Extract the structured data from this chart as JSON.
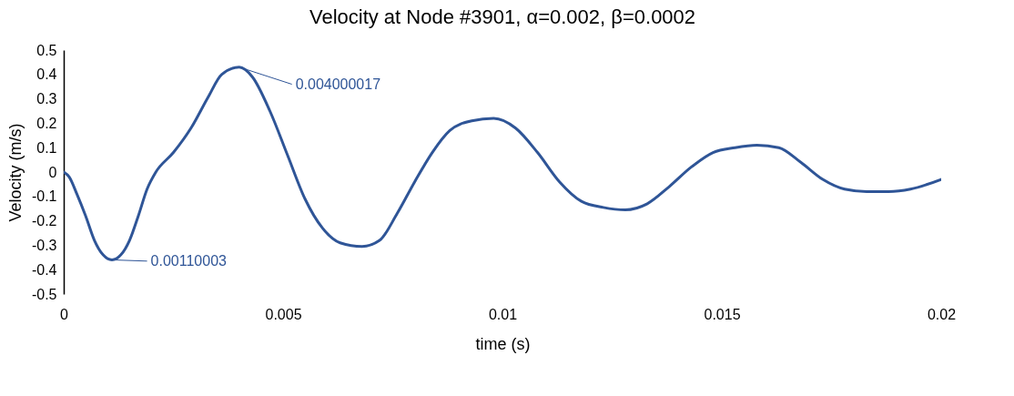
{
  "chart_data": {
    "type": "line",
    "title": "Velocity at Node #3901, α=0.002, β=0.0002",
    "xlabel": "time (s)",
    "ylabel": "Velocity (m/s)",
    "x": [
      0,
      0.000125,
      0.0003,
      0.0005,
      0.0007,
      0.0009,
      0.0011,
      0.0013,
      0.0015,
      0.0017,
      0.0019,
      0.0021,
      0.0025,
      0.0029,
      0.0033,
      0.0036,
      0.004,
      0.0043,
      0.0047,
      0.0051,
      0.0055,
      0.0059,
      0.0063,
      0.0068,
      0.0072,
      0.0076,
      0.008,
      0.0084,
      0.0088,
      0.0093,
      0.0098,
      0.0103,
      0.0108,
      0.0113,
      0.0118,
      0.0123,
      0.0128,
      0.0133,
      0.0138,
      0.0143,
      0.0148,
      0.0153,
      0.0158,
      0.0163,
      0.0168,
      0.0173,
      0.0178,
      0.0183,
      0.0188,
      0.0193,
      0.02
    ],
    "series": [
      {
        "color": "#2f5597",
        "values": [
          0,
          -0.02,
          -0.09,
          -0.18,
          -0.28,
          -0.34,
          -0.36,
          -0.34,
          -0.28,
          -0.18,
          -0.07,
          0,
          0.08,
          0.18,
          0.31,
          0.4,
          0.43,
          0.39,
          0.25,
          0.07,
          -0.11,
          -0.23,
          -0.29,
          -0.305,
          -0.28,
          -0.17,
          -0.04,
          0.08,
          0.17,
          0.21,
          0.22,
          0.18,
          0.08,
          -0.04,
          -0.12,
          -0.145,
          -0.155,
          -0.13,
          -0.06,
          0.02,
          0.08,
          0.1,
          0.11,
          0.1,
          0.04,
          -0.03,
          -0.07,
          -0.08,
          -0.08,
          -0.07,
          -0.03
        ]
      }
    ],
    "xlim": [
      0,
      0.02
    ],
    "xticks": [
      0,
      0.005,
      0.01,
      0.015,
      0.02
    ],
    "ylim": [
      -0.5,
      0.5
    ],
    "yticks": [
      -0.5,
      -0.4,
      -0.3,
      -0.2,
      -0.1,
      0,
      0.1,
      0.2,
      0.3,
      0.4,
      0.5
    ],
    "grid": false,
    "line_style": "solid",
    "marker": "none",
    "annotations": [
      {
        "text": "0.004000017",
        "x": 0.004,
        "y": 0.43
      },
      {
        "text": "0.00110003",
        "x": 0.0011,
        "y": -0.36
      }
    ]
  }
}
